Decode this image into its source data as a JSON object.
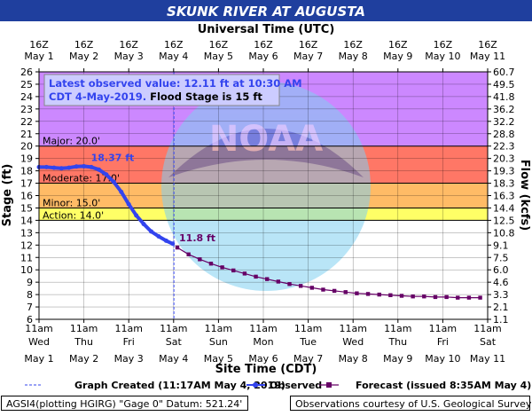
{
  "header": {
    "title": "SKUNK RIVER AT AUGUSTA"
  },
  "axes": {
    "top_title": "Universal Time (UTC)",
    "bottom_title": "Site Time (CDT)",
    "left_title": "Stage (ft)",
    "right_title": "Flow (kcfs)"
  },
  "annotation": {
    "line1": "Latest observed value: 12.11 ft at 10:30 AM",
    "line2_blue": "CDT 4-May-2019.",
    "line2_black": " Flood Stage is 15 ft"
  },
  "labels": {
    "peak": "18.37 ft",
    "fcst_start": "11.8 ft"
  },
  "legend": {
    "created": "Graph Created (11:17AM May 4, 2019)",
    "observed": "Observed",
    "forecast": "Forecast (issued 8:35AM May 4)"
  },
  "footer": {
    "left": "AGSI4(plotting HGIRG) \"Gage 0\" Datum: 521.24'",
    "right": "Observations courtesy of U.S. Geological Survey"
  },
  "chart_data": {
    "type": "line",
    "title": "SKUNK RIVER AT AUGUSTA",
    "xlabel": "Site Time (CDT)",
    "x2label": "Universal Time (UTC)",
    "ylabel": "Stage (ft)",
    "y2label": "Flow (kcfs)",
    "ylim": [
      6,
      26
    ],
    "grid": true,
    "legend_position": "bottom",
    "top_ticks": [
      [
        "16Z",
        "May 1"
      ],
      [
        "16Z",
        "May 2"
      ],
      [
        "16Z",
        "May 3"
      ],
      [
        "16Z",
        "May 4"
      ],
      [
        "16Z",
        "May 5"
      ],
      [
        "16Z",
        "May 6"
      ],
      [
        "16Z",
        "May 7"
      ],
      [
        "16Z",
        "May 8"
      ],
      [
        "16Z",
        "May 9"
      ],
      [
        "16Z",
        "May 10"
      ],
      [
        "16Z",
        "May 11"
      ]
    ],
    "bottom_ticks": [
      [
        "11am",
        "Wed",
        "May 1"
      ],
      [
        "11am",
        "Thu",
        "May 2"
      ],
      [
        "11am",
        "Fri",
        "May 3"
      ],
      [
        "11am",
        "Sat",
        "May 4"
      ],
      [
        "11am",
        "Sun",
        "May 5"
      ],
      [
        "11am",
        "Mon",
        "May 6"
      ],
      [
        "11am",
        "Tue",
        "May 7"
      ],
      [
        "11am",
        "Wed",
        "May 8"
      ],
      [
        "11am",
        "Thu",
        "May 9"
      ],
      [
        "11am",
        "Fri",
        "May 10"
      ],
      [
        "11am",
        "Sat",
        "May 11"
      ]
    ],
    "stage_ticks": [
      6,
      7,
      8,
      9,
      10,
      11,
      12,
      13,
      14,
      15,
      16,
      17,
      18,
      19,
      20,
      21,
      22,
      23,
      24,
      25,
      26
    ],
    "flow_ticks": [
      "1.1",
      "2.1",
      "3.3",
      "4.6",
      "6.0",
      "7.5",
      "9.1",
      "10.8",
      "12.5",
      "14.4",
      "16.3",
      "18.3",
      "19.3",
      "20.3",
      "22.3",
      "28.8",
      "32.2",
      "36.2",
      "41.8",
      "49.5",
      "60.7"
    ],
    "flood_categories": [
      {
        "name": "Major",
        "label": "Major: 20.0'",
        "from": 20,
        "to": 26,
        "color": "#cc88ff"
      },
      {
        "name": "Moderate",
        "label": "Moderate: 17.0'",
        "from": 17,
        "to": 20,
        "color": "#ff7766"
      },
      {
        "name": "Minor",
        "label": "Minor: 15.0'",
        "from": 15,
        "to": 17,
        "color": "#ffbb66"
      },
      {
        "name": "Action",
        "label": "Action: 14.0'",
        "from": 14,
        "to": 15,
        "color": "#ffff66"
      }
    ],
    "graph_created_time": "11:17AM May 4, 2019",
    "series": [
      {
        "name": "Observed",
        "color": "#3344ee",
        "x": [
          "May 1 11am",
          "May 1 3pm",
          "May 1 7pm",
          "May 1 11pm",
          "May 2 3am",
          "May 2 7am",
          "May 2 11am",
          "May 2 3pm",
          "May 2 7pm",
          "May 2 11pm",
          "May 3 3am",
          "May 3 7am",
          "May 3 11am",
          "May 3 3pm",
          "May 3 7pm",
          "May 3 11pm",
          "May 4 3am",
          "May 4 7am",
          "May 4 10:30am"
        ],
        "y": [
          18.3,
          18.3,
          18.25,
          18.2,
          18.25,
          18.35,
          18.37,
          18.3,
          18.1,
          17.7,
          17.1,
          16.3,
          15.3,
          14.4,
          13.7,
          13.1,
          12.7,
          12.35,
          12.11
        ]
      },
      {
        "name": "Forecast",
        "color": "#660066",
        "x": [
          "May 4 1pm",
          "May 4 7pm",
          "May 5 1am",
          "May 5 7am",
          "May 5 1pm",
          "May 5 7pm",
          "May 6 1am",
          "May 6 7am",
          "May 6 1pm",
          "May 6 7pm",
          "May 7 1am",
          "May 7 7am",
          "May 7 1pm",
          "May 7 7pm",
          "May 8 1am",
          "May 8 7am",
          "May 8 1pm",
          "May 8 7pm",
          "May 9 1am",
          "May 9 7am",
          "May 9 1pm",
          "May 9 7pm",
          "May 10 1am",
          "May 10 7am",
          "May 10 1pm",
          "May 10 7pm",
          "May 11 1am",
          "May 11 7am"
        ],
        "y": [
          11.8,
          11.25,
          10.85,
          10.5,
          10.2,
          9.95,
          9.7,
          9.45,
          9.25,
          9.05,
          8.85,
          8.7,
          8.55,
          8.4,
          8.3,
          8.2,
          8.1,
          8.05,
          8.0,
          7.95,
          7.9,
          7.85,
          7.85,
          7.8,
          7.8,
          7.75,
          7.75,
          7.75
        ]
      }
    ]
  }
}
